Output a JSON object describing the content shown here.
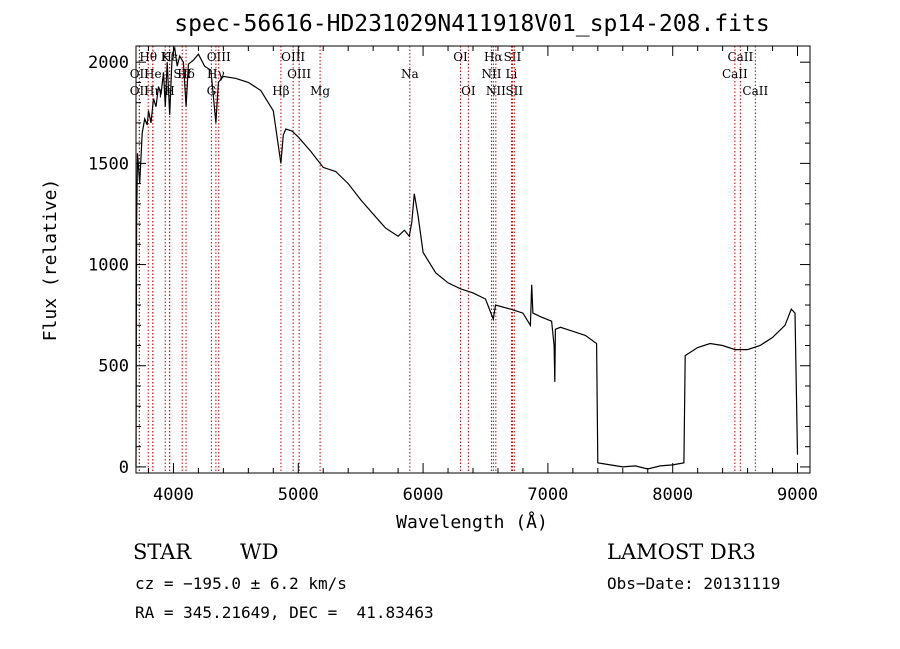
{
  "chart_data": {
    "type": "line",
    "title": "spec-56616-HD231029N411918V01_sp14-208.fits",
    "xlabel": "Wavelength (Å)",
    "ylabel": "Flux (relative)",
    "xlim": [
      3700,
      9100
    ],
    "ylim": [
      -30,
      2080
    ],
    "x_ticks": [
      4000,
      5000,
      6000,
      7000,
      8000,
      9000
    ],
    "y_ticks": [
      0,
      500,
      1000,
      1500,
      2000
    ],
    "series": [
      {
        "name": "flux",
        "points": [
          [
            3700,
            0
          ],
          [
            3705,
            1200
          ],
          [
            3712,
            1550
          ],
          [
            3730,
            1400
          ],
          [
            3750,
            1650
          ],
          [
            3770,
            1720
          ],
          [
            3790,
            1690
          ],
          [
            3800,
            1760
          ],
          [
            3820,
            1700
          ],
          [
            3840,
            1820
          ],
          [
            3860,
            1780
          ],
          [
            3880,
            1880
          ],
          [
            3900,
            1840
          ],
          [
            3920,
            1950
          ],
          [
            3935,
            1780
          ],
          [
            3950,
            2000
          ],
          [
            3970,
            1740
          ],
          [
            3990,
            2040
          ],
          [
            4010,
            2070
          ],
          [
            4030,
            1980
          ],
          [
            4050,
            2030
          ],
          [
            4080,
            2000
          ],
          [
            4101,
            1780
          ],
          [
            4120,
            1990
          ],
          [
            4160,
            2010
          ],
          [
            4200,
            2040
          ],
          [
            4250,
            1980
          ],
          [
            4300,
            1960
          ],
          [
            4340,
            1700
          ],
          [
            4360,
            1900
          ],
          [
            4400,
            1930
          ],
          [
            4500,
            1920
          ],
          [
            4600,
            1900
          ],
          [
            4700,
            1860
          ],
          [
            4800,
            1760
          ],
          [
            4861,
            1500
          ],
          [
            4880,
            1640
          ],
          [
            4900,
            1670
          ],
          [
            4950,
            1660
          ],
          [
            5000,
            1630
          ],
          [
            5100,
            1560
          ],
          [
            5200,
            1480
          ],
          [
            5300,
            1460
          ],
          [
            5400,
            1400
          ],
          [
            5500,
            1320
          ],
          [
            5600,
            1250
          ],
          [
            5700,
            1180
          ],
          [
            5800,
            1140
          ],
          [
            5850,
            1170
          ],
          [
            5890,
            1140
          ],
          [
            5910,
            1210
          ],
          [
            5930,
            1350
          ],
          [
            5960,
            1240
          ],
          [
            6000,
            1060
          ],
          [
            6100,
            960
          ],
          [
            6200,
            910
          ],
          [
            6300,
            880
          ],
          [
            6400,
            860
          ],
          [
            6500,
            830
          ],
          [
            6563,
            730
          ],
          [
            6580,
            800
          ],
          [
            6700,
            780
          ],
          [
            6800,
            760
          ],
          [
            6860,
            700
          ],
          [
            6870,
            900
          ],
          [
            6880,
            760
          ],
          [
            6950,
            740
          ],
          [
            7030,
            720
          ],
          [
            7050,
            600
          ],
          [
            7055,
            420
          ],
          [
            7060,
            680
          ],
          [
            7100,
            690
          ],
          [
            7200,
            670
          ],
          [
            7300,
            650
          ],
          [
            7390,
            610
          ],
          [
            7400,
            20
          ],
          [
            7500,
            10
          ],
          [
            7600,
            0
          ],
          [
            7700,
            5
          ],
          [
            7800,
            -10
          ],
          [
            7900,
            5
          ],
          [
            8000,
            10
          ],
          [
            8090,
            20
          ],
          [
            8100,
            550
          ],
          [
            8200,
            590
          ],
          [
            8300,
            610
          ],
          [
            8400,
            600
          ],
          [
            8500,
            580
          ],
          [
            8600,
            580
          ],
          [
            8700,
            600
          ],
          [
            8800,
            640
          ],
          [
            8900,
            700
          ],
          [
            8950,
            780
          ],
          [
            8980,
            760
          ],
          [
            9000,
            60
          ]
        ]
      }
    ],
    "line_markers": [
      {
        "label": "Hθ",
        "x": 3798,
        "row": 1
      },
      {
        "label": "OII",
        "x": 3727,
        "row": 2
      },
      {
        "label": "OII",
        "x": 3727,
        "row": 3
      },
      {
        "label": "He",
        "x": 3835,
        "row": 2
      },
      {
        "label": "Hη",
        "x": 3835,
        "row": 3
      },
      {
        "label": "K",
        "x": 3934,
        "row": 1
      },
      {
        "label": "H",
        "x": 3969,
        "row": 3
      },
      {
        "label": "Hε",
        "x": 3970,
        "row": 1
      },
      {
        "label": "SII",
        "x": 4070,
        "row": 2
      },
      {
        "label": "Hδ",
        "x": 4101,
        "row": 2
      },
      {
        "label": "OIII",
        "x": 4363,
        "row": 1
      },
      {
        "label": "Hγ",
        "x": 4340,
        "row": 2
      },
      {
        "label": "G",
        "x": 4304,
        "row": 3
      },
      {
        "label": "OIII",
        "x": 4959,
        "row": 1
      },
      {
        "label": "OIII",
        "x": 5007,
        "row": 2
      },
      {
        "label": "Hβ",
        "x": 4861,
        "row": 3
      },
      {
        "label": "Mg",
        "x": 5175,
        "row": 3
      },
      {
        "label": "Na",
        "x": 5894,
        "row": 2
      },
      {
        "label": "OI",
        "x": 6300,
        "row": 1
      },
      {
        "label": "OI",
        "x": 6363,
        "row": 3
      },
      {
        "label": "Hα",
        "x": 6563,
        "row": 1
      },
      {
        "label": "SII",
        "x": 6716,
        "row": 1
      },
      {
        "label": "NII",
        "x": 6548,
        "row": 2
      },
      {
        "label": "Li",
        "x": 6708,
        "row": 2
      },
      {
        "label": "NII",
        "x": 6583,
        "row": 3
      },
      {
        "label": "SII",
        "x": 6731,
        "row": 3
      },
      {
        "label": "CaII",
        "x": 8542,
        "row": 1
      },
      {
        "label": "CaII",
        "x": 8498,
        "row": 2
      },
      {
        "label": "CaII",
        "x": 8662,
        "row": 3
      }
    ]
  },
  "footer": {
    "class_label": "STAR",
    "subclass_label": "WD",
    "survey": "LAMOST DR3",
    "cz": "cz = −195.0 ± 6.2 km/s",
    "obs_date": "Obs−Date: 20131119",
    "coords": "RA = 345.21649, DEC =  41.83463"
  }
}
